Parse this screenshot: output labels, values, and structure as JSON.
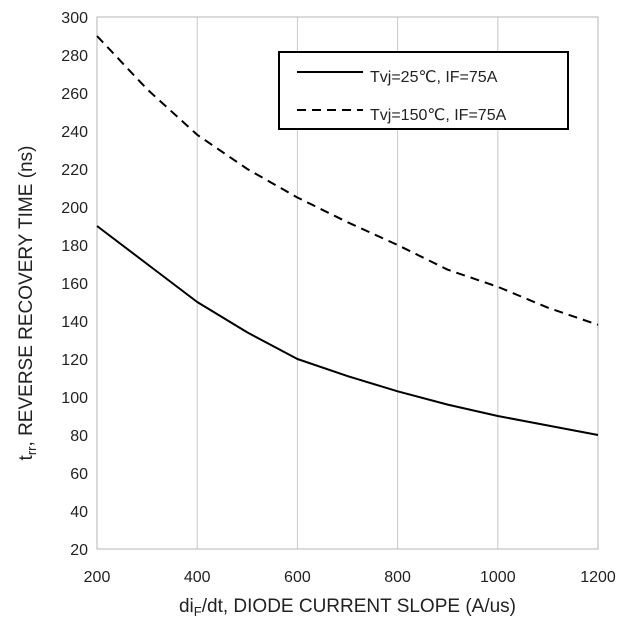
{
  "chart_data": {
    "type": "line",
    "xlabel": {
      "prefix": "di",
      "sub": "F",
      "suffix": "/dt, DIODE CURRENT SLOPE (A/us)"
    },
    "ylabel": {
      "prefix": "t",
      "sub": "rr",
      "suffix": ", REVERSE RECOVERY TIME (ns)"
    },
    "xlim": [
      200,
      1200
    ],
    "ylim": [
      20,
      300
    ],
    "xticks": [
      200,
      400,
      600,
      800,
      1000,
      1200
    ],
    "yticks": [
      20,
      40,
      60,
      80,
      100,
      120,
      140,
      160,
      180,
      200,
      220,
      240,
      260,
      280,
      300
    ],
    "grid": {
      "vertical": true,
      "horizontal": false
    },
    "legend_position": "top-right",
    "series": [
      {
        "name": "Tvj=25℃,  IF=75A",
        "style": "solid",
        "color": "#000000",
        "x": [
          200,
          300,
          400,
          500,
          600,
          700,
          800,
          900,
          1000,
          1100,
          1200
        ],
        "y": [
          190,
          170,
          150,
          134,
          120,
          111,
          103,
          96,
          90,
          85,
          80
        ]
      },
      {
        "name": "Tvj=150℃,  IF=75A",
        "style": "dashed",
        "color": "#000000",
        "x": [
          200,
          300,
          400,
          500,
          600,
          700,
          800,
          900,
          1000,
          1100,
          1200
        ],
        "y": [
          290,
          262,
          238,
          220,
          205,
          192,
          180,
          167,
          158,
          147,
          138
        ]
      }
    ]
  }
}
